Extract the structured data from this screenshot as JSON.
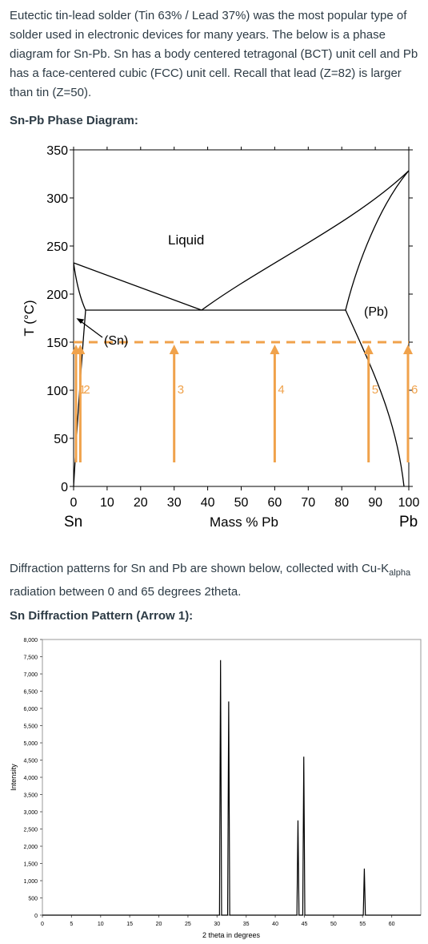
{
  "intro": {
    "text": "Eutectic tin-lead solder (Tin 63% / Lead 37%) was the most popular type of solder used in electronic devices for many years. The below is a phase diagram for Sn-Pb. Sn has a body centered tetragonal (BCT) unit cell and Pb has a face-centered cubic (FCC) unit cell. Recall that lead (Z=82) is larger than tin (Z=50)."
  },
  "phase_heading": "Sn-Pb Phase Diagram:",
  "phase_diagram": {
    "ylabel": "T (°C)",
    "xlabel": "Mass % Pb",
    "x_ticks": [
      "0",
      "10",
      "20",
      "30",
      "40",
      "50",
      "60",
      "70",
      "80",
      "90",
      "100"
    ],
    "y_ticks": [
      "0",
      "50",
      "100",
      "150",
      "200",
      "250",
      "300",
      "350"
    ],
    "left_end_label": "Sn",
    "right_end_label": "Pb",
    "region_labels": {
      "liquid": "Liquid",
      "sn": "(Sn)",
      "pb": "(Pb)"
    },
    "arrows": [
      {
        "label": "1",
        "x": 0
      },
      {
        "label": "2",
        "x": 2
      },
      {
        "label": "3",
        "x": 30
      },
      {
        "label": "4",
        "x": 60
      },
      {
        "label": "5",
        "x": 88
      },
      {
        "label": "6",
        "x": 99
      }
    ],
    "dashed_line_T": 150,
    "accent_color": "#f0a24b"
  },
  "diffraction_intro": {
    "text_before": "Diffraction patterns for Sn and Pb are shown below, collected with Cu-K",
    "subscript": "alpha",
    "text_after": " radiation between 0 and 65 degrees 2theta."
  },
  "sn_heading": "Sn Diffraction Pattern (Arrow 1):",
  "chart_data": {
    "type": "line",
    "title": "",
    "xlabel": "2 theta in degrees",
    "ylabel": "Intensity",
    "xlim": [
      0,
      65
    ],
    "ylim": [
      0,
      8000
    ],
    "x_ticks": [
      "0",
      "5",
      "10",
      "15",
      "20",
      "25",
      "30",
      "35",
      "40",
      "45",
      "50",
      "55",
      "60"
    ],
    "y_ticks": [
      "0",
      "500",
      "1,000",
      "1,500",
      "2,000",
      "2,500",
      "3,000",
      "3,500",
      "4,000",
      "4,500",
      "5,000",
      "5,500",
      "6,000",
      "6,500",
      "7,000",
      "7,500",
      "8,000"
    ],
    "peaks": [
      {
        "x": 30.6,
        "y": 7400
      },
      {
        "x": 32.0,
        "y": 6200
      },
      {
        "x": 43.9,
        "y": 2750
      },
      {
        "x": 44.9,
        "y": 4600
      },
      {
        "x": 55.3,
        "y": 1350
      }
    ],
    "grid": false
  }
}
